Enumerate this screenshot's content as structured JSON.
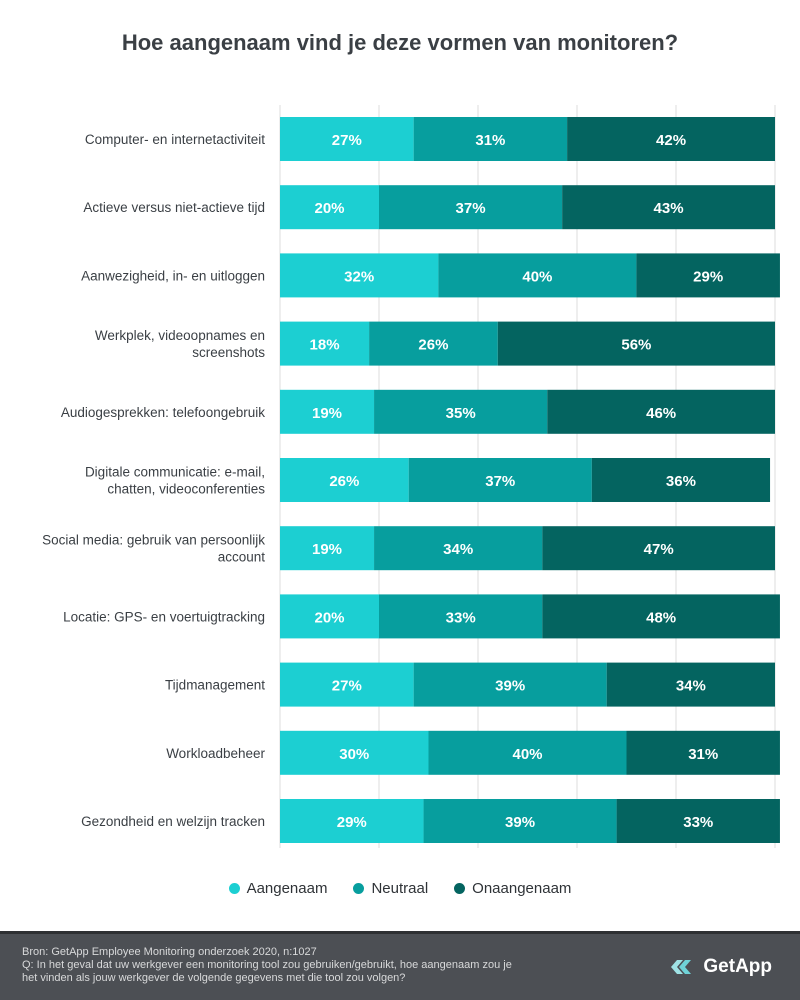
{
  "chart_data": {
    "type": "bar",
    "orientation": "horizontal",
    "stacked": true,
    "title": "Hoe aangenaam vind je deze vormen van monitoren?",
    "categories": [
      [
        "Computer- en internetactiviteit"
      ],
      [
        "Actieve versus niet-actieve tijd"
      ],
      [
        "Aanwezigheid, in- en uitloggen"
      ],
      [
        "Werkplek, videoopnames en",
        "screenshots"
      ],
      [
        "Audiogesprekken: telefoongebruik"
      ],
      [
        "Digitale communicatie: e-mail,",
        "chatten, videoconferenties"
      ],
      [
        "Social media: gebruik van persoonlijk",
        "account"
      ],
      [
        "Locatie: GPS- en voertuigtracking"
      ],
      [
        "Tijdmanagement"
      ],
      [
        "Workloadbeheer"
      ],
      [
        "Gezondheid en welzijn tracken"
      ]
    ],
    "series": [
      {
        "name": "Aangenaam",
        "color": "#1ccfd2",
        "values": [
          27,
          20,
          32,
          18,
          19,
          26,
          19,
          20,
          27,
          30,
          29
        ]
      },
      {
        "name": "Neutraal",
        "color": "#079e9e",
        "values": [
          31,
          37,
          40,
          26,
          35,
          37,
          34,
          33,
          39,
          40,
          39
        ]
      },
      {
        "name": "Onaangenaam",
        "color": "#046460",
        "values": [
          42,
          43,
          29,
          56,
          46,
          36,
          47,
          48,
          34,
          31,
          33
        ]
      }
    ],
    "value_suffix": "%",
    "xlim": [
      0,
      100
    ],
    "legend_position": "bottom"
  },
  "footer": {
    "source": "Bron: GetApp Employee Monitoring onderzoek 2020, n:1027",
    "question_line1": "Q: In het geval dat uw werkgever een monitoring tool zou gebruiken/gebruikt, hoe aangenaam zou je",
    "question_line2": "het vinden als jouw werkgever de volgende gegevens met die tool zou volgen?",
    "brand": "GetApp"
  },
  "colors": {
    "label_text": "#3a3f44",
    "gridline": "#dcdcdc",
    "footer_bg": "#4c4f54"
  }
}
